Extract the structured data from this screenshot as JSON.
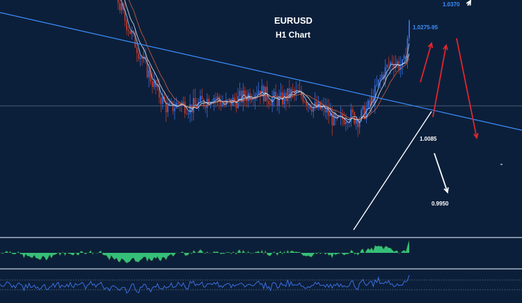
{
  "title": "EURUSD",
  "subtitle": "H1 Chart",
  "levels": {
    "top": "1.0370",
    "target": "1.0275-95",
    "support": "1.0085",
    "lower": "0.9950"
  },
  "colors": {
    "background": "#0c1f3a",
    "trendline_blue": "#3b8fff",
    "candle_up": "#3b6fe0",
    "candle_down": "#c0392b",
    "arrow_red": "#e0262f",
    "arrow_white": "#ffffff",
    "oscillator_fill": "#3ddc84",
    "rsi_line": "#3b6fe0"
  },
  "chart_data": {
    "type": "line",
    "title": "EURUSD",
    "subtitle": "H1 Chart",
    "xlabel": "",
    "ylabel": "",
    "grid": false,
    "x": [
      0,
      4,
      8,
      12,
      16,
      20,
      24,
      28,
      32,
      36,
      40,
      44,
      48,
      52,
      56,
      60,
      64,
      68,
      72,
      76,
      80,
      84,
      88,
      92,
      96,
      100,
      104,
      108,
      112,
      116,
      120,
      124,
      128,
      132,
      136,
      140,
      144,
      146
    ],
    "series": [
      {
        "values": [
          1.0585,
          1.0595,
          1.0565,
          1.053,
          1.0485,
          1.0475,
          1.0465,
          1.0465,
          1.0465,
          1.046,
          1.041,
          1.0345,
          1.029,
          1.0235,
          1.0185,
          1.0145,
          1.016,
          1.015,
          1.016,
          1.0175,
          1.0155,
          1.0165,
          1.0175,
          1.019,
          1.017,
          1.0165,
          1.018,
          1.0175,
          1.015,
          1.0145,
          1.0115,
          1.0135,
          1.0125,
          1.0155,
          1.0215,
          1.025,
          1.0235,
          1.0325
        ]
      }
    ],
    "annotations": [
      "1.0370",
      "1.0275-95",
      "1.0085",
      "0.9950"
    ]
  }
}
